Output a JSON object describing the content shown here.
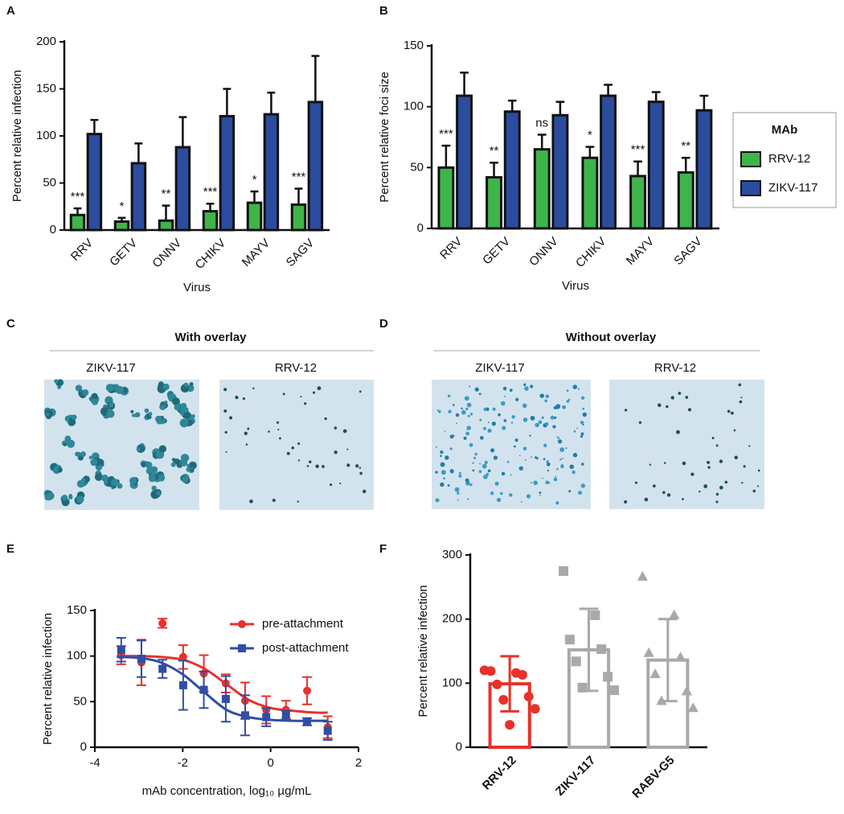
{
  "chart_data": [
    {
      "panel": "A",
      "type": "bar",
      "y_label": "Percent relative infection",
      "x_label": "Virus",
      "categories": [
        "RRV",
        "GETV",
        "ONNV",
        "CHIKV",
        "MAYV",
        "SAGV"
      ],
      "series": [
        {
          "name": "RRV-12",
          "color": "#3fb549",
          "values": [
            16,
            9,
            10,
            20,
            29,
            27
          ],
          "errors": [
            7,
            4,
            16,
            8,
            12,
            17
          ]
        },
        {
          "name": "ZIKV-117",
          "color": "#2b4c9f",
          "values": [
            102,
            71,
            88,
            121,
            123,
            136
          ],
          "errors": [
            15,
            21,
            32,
            29,
            23,
            49
          ]
        }
      ],
      "annotations": [
        "***",
        "*",
        "**",
        "***",
        "*",
        "***"
      ],
      "ylim": [
        0,
        200
      ],
      "yticks": [
        0,
        50,
        100,
        150,
        200
      ]
    },
    {
      "panel": "B",
      "type": "bar",
      "y_label": "Percent relative foci size",
      "x_label": "Virus",
      "categories": [
        "RRV",
        "GETV",
        "ONNV",
        "CHIKV",
        "MAYV",
        "SAGV"
      ],
      "series": [
        {
          "name": "RRV-12",
          "color": "#3fb549",
          "values": [
            50,
            42,
            65,
            58,
            43,
            46
          ],
          "errors": [
            18,
            12,
            12,
            9,
            12,
            12
          ]
        },
        {
          "name": "ZIKV-117",
          "color": "#2b4c9f",
          "values": [
            109,
            96,
            93,
            109,
            104,
            97
          ],
          "errors": [
            19,
            9,
            11,
            9,
            8,
            12
          ]
        }
      ],
      "annotations": [
        "***",
        "**",
        "ns",
        "*",
        "***",
        "**"
      ],
      "legend_title": "MAb",
      "legend": "outside right",
      "ylim": [
        0,
        150
      ],
      "yticks": [
        0,
        50,
        100,
        150
      ]
    },
    {
      "panel": "E",
      "type": "scatter",
      "y_label": "Percent relative infection",
      "x_label": "mAb concentration, log₁₀ µg/mL",
      "x": [
        -3.4,
        -2.94,
        -2.46,
        -1.99,
        -1.52,
        -1.02,
        -0.58,
        -0.1,
        0.35,
        0.83,
        1.3
      ],
      "fit_x": [
        -3.5,
        -3,
        -2.5,
        -2,
        -1.5,
        -1,
        -0.5,
        0,
        0.5,
        1,
        1.3
      ],
      "series": [
        {
          "name": "pre-attachment",
          "color": "#e8312a",
          "marker": "circle",
          "values": [
            101,
            93,
            136,
            99,
            81,
            70,
            51,
            41,
            41,
            62,
            22
          ],
          "errors": [
            10,
            25,
            5,
            13,
            20,
            10,
            20,
            15,
            10,
            15,
            12
          ],
          "fit_values": [
            100,
            100,
            99,
            96,
            86,
            69,
            52,
            43,
            40,
            38,
            38
          ]
        },
        {
          "name": "post-attachment",
          "color": "#2f4ea6",
          "marker": "square",
          "values": [
            107,
            97,
            86,
            68,
            63,
            53,
            35,
            33,
            35,
            28,
            18
          ],
          "errors": [
            13,
            20,
            10,
            27,
            20,
            25,
            22,
            10,
            5,
            4,
            10
          ],
          "fit_values": [
            99,
            98,
            93,
            80,
            60,
            41,
            33,
            30,
            29,
            29,
            29
          ]
        }
      ],
      "legend": "upper right",
      "xlim": [
        -4,
        2
      ],
      "xticks": [
        -4,
        -2,
        0,
        2
      ],
      "ylim": [
        0,
        150
      ],
      "yticks": [
        0,
        50,
        100,
        150
      ]
    },
    {
      "panel": "F",
      "type": "bar",
      "y_label": "Percent relative infection",
      "categories": [
        "RRV-12",
        "ZIKV-117",
        "RABV-G5"
      ],
      "values": [
        99,
        152,
        136
      ],
      "errors": [
        43,
        64,
        64
      ],
      "colors": [
        "#e8312a",
        "#a9a9a9",
        "#a9a9a9"
      ],
      "markers": [
        "circle",
        "square",
        "triangle"
      ],
      "points": [
        [
          120,
          116,
          119,
          113,
          98,
          79,
          74,
          60,
          35
        ],
        [
          275,
          206,
          168,
          153,
          134,
          110,
          93,
          89
        ],
        [
          266,
          206,
          147,
          140,
          114,
          87,
          72,
          61
        ]
      ],
      "ylim": [
        0,
        300
      ],
      "yticks": [
        0,
        100,
        200,
        300
      ]
    }
  ],
  "image_panels": [
    {
      "panel": "C",
      "title": "With overlay",
      "images": [
        {
          "label": "ZIKV-117"
        },
        {
          "label": "RRV-12"
        }
      ]
    },
    {
      "panel": "D",
      "title": "Without overlay",
      "images": [
        {
          "label": "ZIKV-117"
        },
        {
          "label": "RRV-12"
        }
      ]
    }
  ]
}
